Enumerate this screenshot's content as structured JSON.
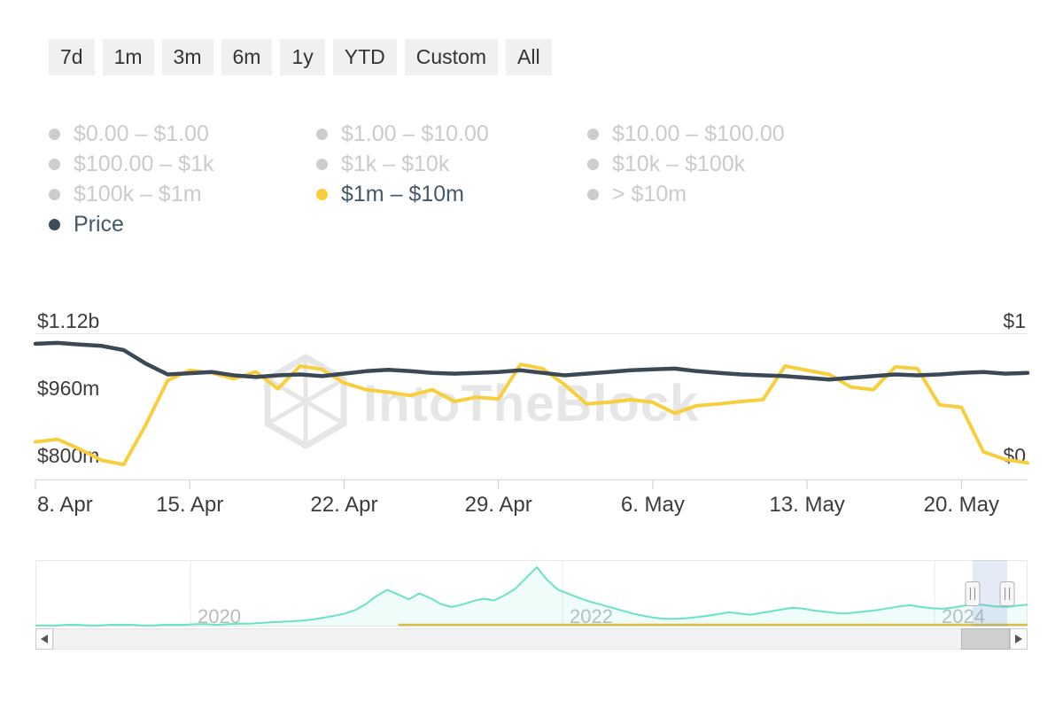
{
  "header": {
    "range_buttons": [
      "7d",
      "1m",
      "3m",
      "6m",
      "1y",
      "YTD",
      "Custom",
      "All"
    ]
  },
  "legend": {
    "items": [
      {
        "label": "$0.00 – $1.00",
        "color": "#cdcdcd",
        "active": false
      },
      {
        "label": "$1.00 – $10.00",
        "color": "#cdcdcd",
        "active": false
      },
      {
        "label": "$10.00 – $100.00",
        "color": "#cdcdcd",
        "active": false
      },
      {
        "label": "$100.00 – $1k",
        "color": "#cdcdcd",
        "active": false
      },
      {
        "label": "$1k – $10k",
        "color": "#cdcdcd",
        "active": false
      },
      {
        "label": "$10k – $100k",
        "color": "#cdcdcd",
        "active": false
      },
      {
        "label": "$100k – $1m",
        "color": "#cdcdcd",
        "active": false
      },
      {
        "label": "$1m – $10m",
        "color": "#f8ce3d",
        "active": true
      },
      {
        "label": "> $10m",
        "color": "#cdcdcd",
        "active": false
      },
      {
        "label": "Price",
        "color": "#3e4c59",
        "active": true
      }
    ]
  },
  "watermark": {
    "text": "IntoTheBlock"
  },
  "chart_data": {
    "type": "line",
    "title": "",
    "x": [
      "Apr 8",
      "Apr 9",
      "Apr 10",
      "Apr 11",
      "Apr 12",
      "Apr 13",
      "Apr 14",
      "Apr 15",
      "Apr 16",
      "Apr 17",
      "Apr 18",
      "Apr 19",
      "Apr 20",
      "Apr 21",
      "Apr 22",
      "Apr 23",
      "Apr 24",
      "Apr 25",
      "Apr 26",
      "Apr 27",
      "Apr 28",
      "Apr 29",
      "Apr 30",
      "May 1",
      "May 2",
      "May 3",
      "May 4",
      "May 5",
      "May 6",
      "May 7",
      "May 8",
      "May 9",
      "May 10",
      "May 11",
      "May 12",
      "May 13",
      "May 14",
      "May 15",
      "May 16",
      "May 17",
      "May 18",
      "May 19",
      "May 20",
      "May 21",
      "May 22",
      "May 23"
    ],
    "unit": "$ millions",
    "series": [
      {
        "name": "$1m – $10m",
        "color": "#f8ce3d",
        "width": 4,
        "values": [
          862,
          868,
          845,
          818,
          808,
          902,
          1008,
          1032,
          1026,
          1012,
          1028,
          988,
          1042,
          1034,
          1002,
          986,
          980,
          972,
          986,
          958,
          968,
          964,
          1046,
          1036,
          998,
          952,
          956,
          962,
          956,
          930,
          948,
          952,
          958,
          962,
          1042,
          1032,
          1022,
          992,
          986,
          1040,
          1036,
          950,
          944,
          838,
          820,
          812
        ]
      },
      {
        "name": "Price",
        "color": "#3b4956",
        "width": 4.5,
        "values": [
          1095,
          1097,
          1093,
          1090,
          1080,
          1048,
          1022,
          1025,
          1028,
          1020,
          1016,
          1020,
          1022,
          1018,
          1024,
          1030,
          1033,
          1030,
          1026,
          1024,
          1026,
          1028,
          1032,
          1026,
          1020,
          1024,
          1028,
          1032,
          1034,
          1036,
          1030,
          1026,
          1022,
          1020,
          1018,
          1014,
          1010,
          1014,
          1018,
          1022,
          1020,
          1022,
          1026,
          1028,
          1024,
          1026
        ]
      }
    ],
    "y_axis": {
      "ylim": [
        772,
        1153
      ],
      "left_labels": [
        {
          "text": "$1.12b",
          "value": 1120
        },
        {
          "text": "$960m",
          "value": 960
        },
        {
          "text": "$800m",
          "value": 800
        }
      ],
      "right_labels": [
        {
          "text": "$1",
          "value": 1120
        },
        {
          "text": "$0",
          "value": 800
        }
      ]
    },
    "x_axis": {
      "ticks": [
        {
          "label": "8. Apr",
          "day_index": 0
        },
        {
          "label": "15. Apr",
          "day_index": 7
        },
        {
          "label": "22. Apr",
          "day_index": 14
        },
        {
          "label": "29. Apr",
          "day_index": 21
        },
        {
          "label": "6. May",
          "day_index": 28
        },
        {
          "label": "13. May",
          "day_index": 35
        },
        {
          "label": "20. May",
          "day_index": 42
        }
      ]
    },
    "navigator": {
      "year_ticks": [
        2020,
        2022,
        2024
      ],
      "series": [
        {
          "name": "price-history",
          "color": "#68e4c4",
          "values": [
            2,
            2,
            2,
            3,
            3,
            2,
            2,
            3,
            3,
            3,
            2,
            2,
            3,
            3,
            3,
            4,
            4,
            3,
            4,
            5,
            5,
            6,
            7,
            8,
            9,
            10,
            12,
            15,
            18,
            22,
            28,
            38,
            52,
            62,
            54,
            46,
            56,
            48,
            38,
            33,
            37,
            43,
            47,
            44,
            53,
            64,
            82,
            100,
            78,
            62,
            55,
            48,
            42,
            37,
            32,
            27,
            22,
            18,
            15,
            13,
            13,
            14,
            16,
            18,
            21,
            24,
            22,
            20,
            23,
            26,
            29,
            32,
            30,
            27,
            25,
            23,
            22,
            24,
            26,
            28,
            31,
            34,
            36,
            33,
            31,
            30,
            32,
            35,
            38,
            36,
            34,
            33,
            35,
            37
          ]
        },
        {
          "name": "holders-history",
          "color": "#dcbd45",
          "constant_value": 3,
          "start_index": 34
        }
      ],
      "selection": {
        "start_fraction": 0.9446,
        "end_fraction": 0.9795
      },
      "scrollbar": {
        "thumb_start_fraction": 0.949,
        "thumb_end_fraction": 1.0
      }
    }
  }
}
